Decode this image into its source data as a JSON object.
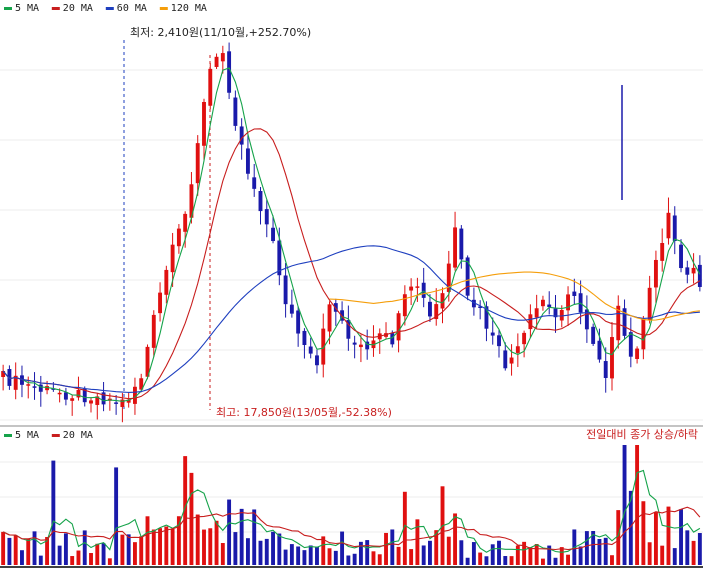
{
  "chart_data": {
    "type": "candlestick",
    "price_panel": {
      "legend": [
        {
          "label": "5 MA",
          "color": "#16a34a"
        },
        {
          "label": "20 MA",
          "color": "#c81e1e"
        },
        {
          "label": "60 MA",
          "color": "#1e3fbf"
        },
        {
          "label": "120 MA",
          "color": "#f59e0b"
        }
      ],
      "annotations": [
        {
          "text": "최저: 2,410원(11/10월,+252.70%)"
        },
        {
          "text": "최고: 17,850원(13/05월,-52.38%)"
        }
      ]
    },
    "volume_panel": {
      "legend": [
        {
          "label": "5 MA",
          "color": "#16a34a"
        },
        {
          "label": "20 MA",
          "color": "#c81e1e"
        }
      ],
      "caption": "전일대비 종가 상승/하락"
    },
    "colors": {
      "up": "#e01010",
      "down": "#1a1aaa"
    }
  }
}
